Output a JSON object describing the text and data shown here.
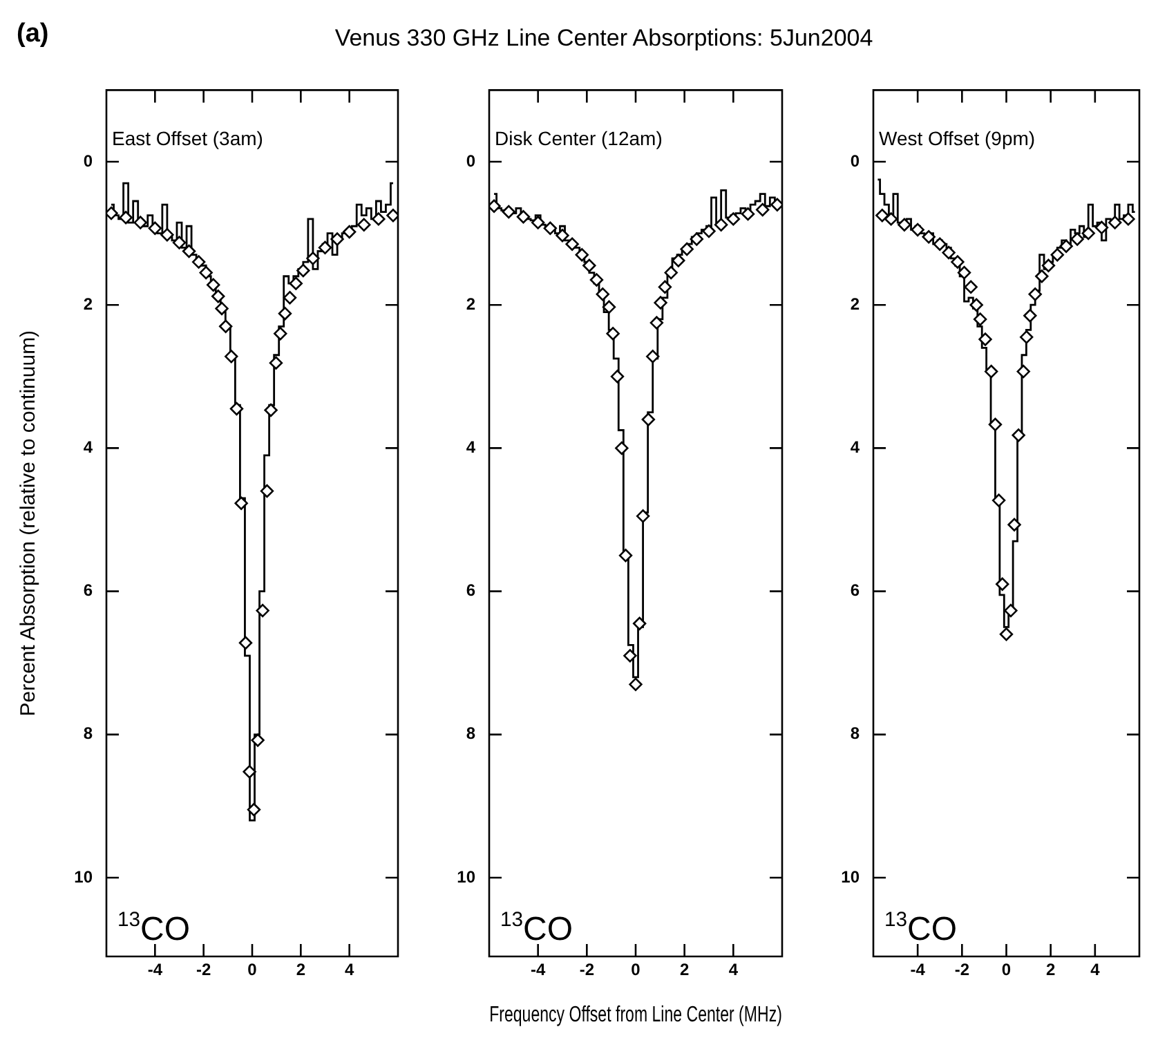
{
  "chart_data": [
    {
      "type": "step",
      "ylabel": "Percent Absorption (relative to continuum)",
      "xlim": [
        -6,
        6
      ],
      "xticks": [
        -4,
        -2,
        0,
        2,
        4
      ],
      "ylim": [
        11.1,
        -1
      ],
      "yticks": [
        0,
        2,
        4,
        6,
        8,
        10
      ],
      "annotations": [
        "(a)",
        "East Offset (3am)",
        "$^{13}$CO"
      ],
      "series": [
        {
          "type": "step",
          "color": "#000000",
          "x": [
            -5.8,
            -5.6,
            -5.4,
            -5.2,
            -5.0,
            -4.8,
            -4.6,
            -4.4,
            -4.2,
            -4.0,
            -3.8,
            -3.6,
            -3.4,
            -3.2,
            -3.0,
            -2.8,
            -2.6,
            -2.4,
            -2.2,
            -2.0,
            -1.8,
            -1.6,
            -1.4,
            -1.2,
            -1.0,
            -0.8,
            -0.6,
            -0.4,
            -0.2,
            0.0,
            0.2,
            0.4,
            0.6,
            0.8,
            1.0,
            1.2,
            1.4,
            1.6,
            1.8,
            2.0,
            2.2,
            2.4,
            2.6,
            2.8,
            3.0,
            3.2,
            3.4,
            3.6,
            3.8,
            4.0,
            4.2,
            4.4,
            4.6,
            4.8,
            5.0,
            5.2,
            5.4,
            5.6,
            5.8
          ],
          "values": [
            0.6,
            0.75,
            0.8,
            0.3,
            0.85,
            0.55,
            0.85,
            0.9,
            0.75,
            0.95,
            1.0,
            0.6,
            1.05,
            1.1,
            0.85,
            1.2,
            0.9,
            1.3,
            1.4,
            1.45,
            1.6,
            1.75,
            1.9,
            2.1,
            2.3,
            2.75,
            3.4,
            4.7,
            6.9,
            9.2,
            8.0,
            6.0,
            4.1,
            3.4,
            2.7,
            2.3,
            1.6,
            1.7,
            1.6,
            1.5,
            1.4,
            0.8,
            1.5,
            1.25,
            1.15,
            1.0,
            1.3,
            1.05,
            1.0,
            0.95,
            0.9,
            0.6,
            0.75,
            0.65,
            0.8,
            0.55,
            0.7,
            0.6,
            0.3
          ]
        },
        {
          "type": "scatter",
          "marker": "diamond",
          "color": "#000000",
          "x": [
            -5.8,
            -5.2,
            -4.6,
            -4.0,
            -3.5,
            -3.0,
            -2.6,
            -2.2,
            -1.9,
            -1.6,
            -1.4,
            -1.25,
            -1.09,
            -0.86,
            -0.64,
            -0.45,
            -0.27,
            -0.11,
            0.07,
            0.23,
            0.43,
            0.61,
            0.77,
            0.98,
            1.16,
            1.35,
            1.55,
            1.8,
            2.1,
            2.5,
            3.0,
            3.5,
            4.0,
            4.6,
            5.2,
            5.8
          ],
          "values": [
            0.72,
            0.78,
            0.85,
            0.93,
            1.02,
            1.13,
            1.25,
            1.4,
            1.55,
            1.72,
            1.88,
            2.05,
            2.3,
            2.72,
            3.45,
            4.77,
            6.72,
            8.52,
            9.05,
            8.08,
            6.27,
            4.6,
            3.47,
            2.81,
            2.4,
            2.12,
            1.9,
            1.7,
            1.52,
            1.35,
            1.2,
            1.08,
            0.98,
            0.88,
            0.8,
            0.75
          ]
        }
      ]
    },
    {
      "type": "step",
      "title": "Venus 330 GHz Line Center Absorptions: 5Jun2004",
      "xlabel": "Frequency Offset from Line Center (MHz)",
      "xlim": [
        -6,
        6
      ],
      "xticks": [
        -4,
        -2,
        0,
        2,
        4
      ],
      "ylim": [
        11.1,
        -1
      ],
      "yticks": [
        0,
        2,
        4,
        6,
        8,
        10
      ],
      "annotations": [
        "Disk Center (12am)",
        "$^{13}$CO"
      ],
      "series": [
        {
          "type": "step",
          "color": "#000000",
          "x": [
            -5.8,
            -5.6,
            -5.4,
            -5.2,
            -5.0,
            -4.8,
            -4.6,
            -4.4,
            -4.2,
            -4.0,
            -3.8,
            -3.6,
            -3.4,
            -3.2,
            -3.0,
            -2.8,
            -2.6,
            -2.4,
            -2.2,
            -2.0,
            -1.8,
            -1.6,
            -1.4,
            -1.2,
            -1.0,
            -0.8,
            -0.6,
            -0.4,
            -0.2,
            0.0,
            0.2,
            0.4,
            0.6,
            0.8,
            1.0,
            1.2,
            1.4,
            1.6,
            1.8,
            2.0,
            2.2,
            2.4,
            2.6,
            2.8,
            3.0,
            3.2,
            3.4,
            3.6,
            3.8,
            4.0,
            4.2,
            4.4,
            4.6,
            4.8,
            5.0,
            5.2,
            5.4,
            5.6,
            5.8
          ],
          "values": [
            0.45,
            0.65,
            0.68,
            0.7,
            0.72,
            0.65,
            0.78,
            0.8,
            0.82,
            0.75,
            0.88,
            0.9,
            0.95,
            1.0,
            0.9,
            1.1,
            1.15,
            1.2,
            1.3,
            1.4,
            1.55,
            1.7,
            1.85,
            2.1,
            2.35,
            2.75,
            3.75,
            5.5,
            6.75,
            7.2,
            6.5,
            4.9,
            3.5,
            2.75,
            2.2,
            1.9,
            1.55,
            1.35,
            1.3,
            1.25,
            1.15,
            1.05,
            1.0,
            0.95,
            0.9,
            0.5,
            0.85,
            0.4,
            0.78,
            0.75,
            0.72,
            0.65,
            0.68,
            0.6,
            0.55,
            0.45,
            0.62,
            0.5,
            0.55
          ]
        },
        {
          "type": "scatter",
          "marker": "diamond",
          "color": "#000000",
          "x": [
            -5.8,
            -5.2,
            -4.6,
            -4.0,
            -3.5,
            -3.0,
            -2.6,
            -2.2,
            -1.9,
            -1.6,
            -1.35,
            -1.09,
            -0.93,
            -0.75,
            -0.57,
            -0.41,
            -0.23,
            0.0,
            0.16,
            0.3,
            0.52,
            0.7,
            0.86,
            1.02,
            1.2,
            1.45,
            1.75,
            2.1,
            2.5,
            3.0,
            3.5,
            4.0,
            4.6,
            5.2,
            5.8
          ],
          "values": [
            0.62,
            0.7,
            0.77,
            0.85,
            0.93,
            1.03,
            1.15,
            1.3,
            1.45,
            1.65,
            1.85,
            2.03,
            2.4,
            3.0,
            4.0,
            5.5,
            6.9,
            7.3,
            6.45,
            4.95,
            3.6,
            2.72,
            2.25,
            1.97,
            1.75,
            1.55,
            1.38,
            1.22,
            1.08,
            0.97,
            0.88,
            0.8,
            0.73,
            0.67,
            0.6
          ]
        }
      ]
    },
    {
      "type": "step",
      "xlim": [
        -6,
        6
      ],
      "xticks": [
        -4,
        -2,
        0,
        2,
        4
      ],
      "ylim": [
        11.1,
        -1
      ],
      "yticks": [
        0,
        2,
        4,
        6,
        8,
        10
      ],
      "annotations": [
        "West Offset (9pm)",
        "$^{13}$CO"
      ],
      "series": [
        {
          "type": "step",
          "color": "#000000",
          "x": [
            -5.8,
            -5.6,
            -5.4,
            -5.2,
            -5.0,
            -4.8,
            -4.6,
            -4.4,
            -4.2,
            -4.0,
            -3.8,
            -3.6,
            -3.4,
            -3.2,
            -3.0,
            -2.8,
            -2.6,
            -2.4,
            -2.2,
            -2.0,
            -1.8,
            -1.6,
            -1.4,
            -1.2,
            -1.0,
            -0.8,
            -0.6,
            -0.4,
            -0.2,
            0.0,
            0.2,
            0.4,
            0.6,
            0.8,
            1.0,
            1.2,
            1.4,
            1.6,
            1.8,
            2.0,
            2.2,
            2.4,
            2.6,
            2.8,
            3.0,
            3.2,
            3.4,
            3.6,
            3.8,
            4.0,
            4.2,
            4.4,
            4.6,
            4.8,
            5.0,
            5.2,
            5.4,
            5.6,
            5.8
          ],
          "values": [
            0.25,
            0.45,
            0.6,
            0.75,
            0.45,
            0.85,
            0.9,
            0.8,
            0.95,
            0.9,
            1.0,
            1.05,
            1.0,
            1.15,
            1.1,
            1.15,
            1.2,
            1.35,
            1.45,
            1.6,
            1.95,
            1.9,
            2.05,
            2.3,
            2.6,
            2.9,
            3.65,
            4.75,
            6.05,
            6.5,
            6.25,
            5.3,
            3.8,
            2.7,
            2.35,
            2.0,
            1.8,
            1.3,
            1.5,
            1.4,
            1.3,
            1.2,
            1.1,
            1.15,
            0.95,
            1.0,
            0.9,
            1.05,
            0.6,
            0.9,
            0.85,
            1.1,
            0.8,
            0.85,
            0.6,
            0.8,
            0.75,
            0.6,
            0.7
          ]
        },
        {
          "type": "scatter",
          "marker": "diamond",
          "color": "#000000",
          "x": [
            -5.6,
            -5.2,
            -4.6,
            -4.0,
            -3.5,
            -3.0,
            -2.6,
            -2.2,
            -1.9,
            -1.6,
            -1.35,
            -1.18,
            -0.95,
            -0.68,
            -0.5,
            -0.34,
            -0.18,
            0.0,
            0.2,
            0.36,
            0.55,
            0.77,
            0.91,
            1.07,
            1.3,
            1.6,
            1.9,
            2.3,
            2.7,
            3.2,
            3.7,
            4.3,
            4.9,
            5.5
          ],
          "values": [
            0.75,
            0.8,
            0.88,
            0.95,
            1.05,
            1.15,
            1.27,
            1.4,
            1.55,
            1.75,
            2.0,
            2.2,
            2.48,
            2.93,
            3.67,
            4.73,
            5.9,
            6.6,
            6.27,
            5.07,
            3.82,
            2.93,
            2.45,
            2.15,
            1.85,
            1.6,
            1.45,
            1.3,
            1.18,
            1.08,
            1.0,
            0.92,
            0.85,
            0.8
          ]
        }
      ]
    }
  ]
}
